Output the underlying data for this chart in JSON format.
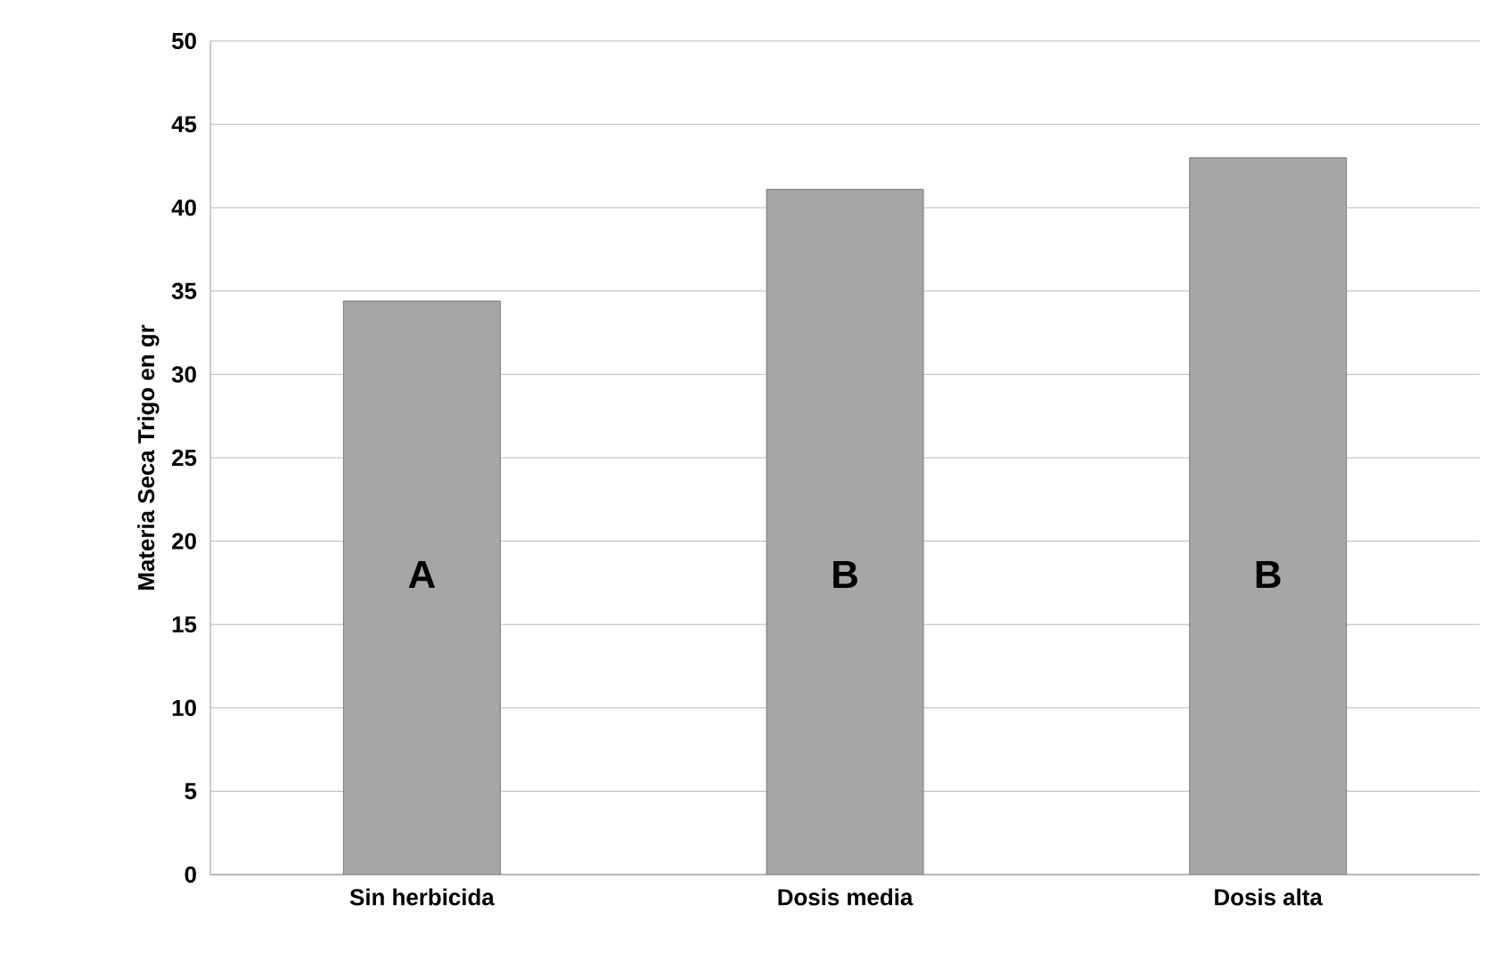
{
  "chart_data": {
    "type": "bar",
    "ylabel": "Materia Seca Trigo en gr",
    "categories": [
      "Sin herbicida",
      "Dosis media",
      "Dosis alta"
    ],
    "values": [
      34.4,
      41.1,
      43
    ],
    "color": "#a6a6a6",
    "ylim": [
      0,
      50
    ],
    "yticks": [
      0,
      5,
      10,
      15,
      20,
      25,
      30,
      35,
      40,
      45,
      50
    ],
    "grid": "y",
    "annotations": [
      "A",
      "B",
      "B"
    ]
  }
}
